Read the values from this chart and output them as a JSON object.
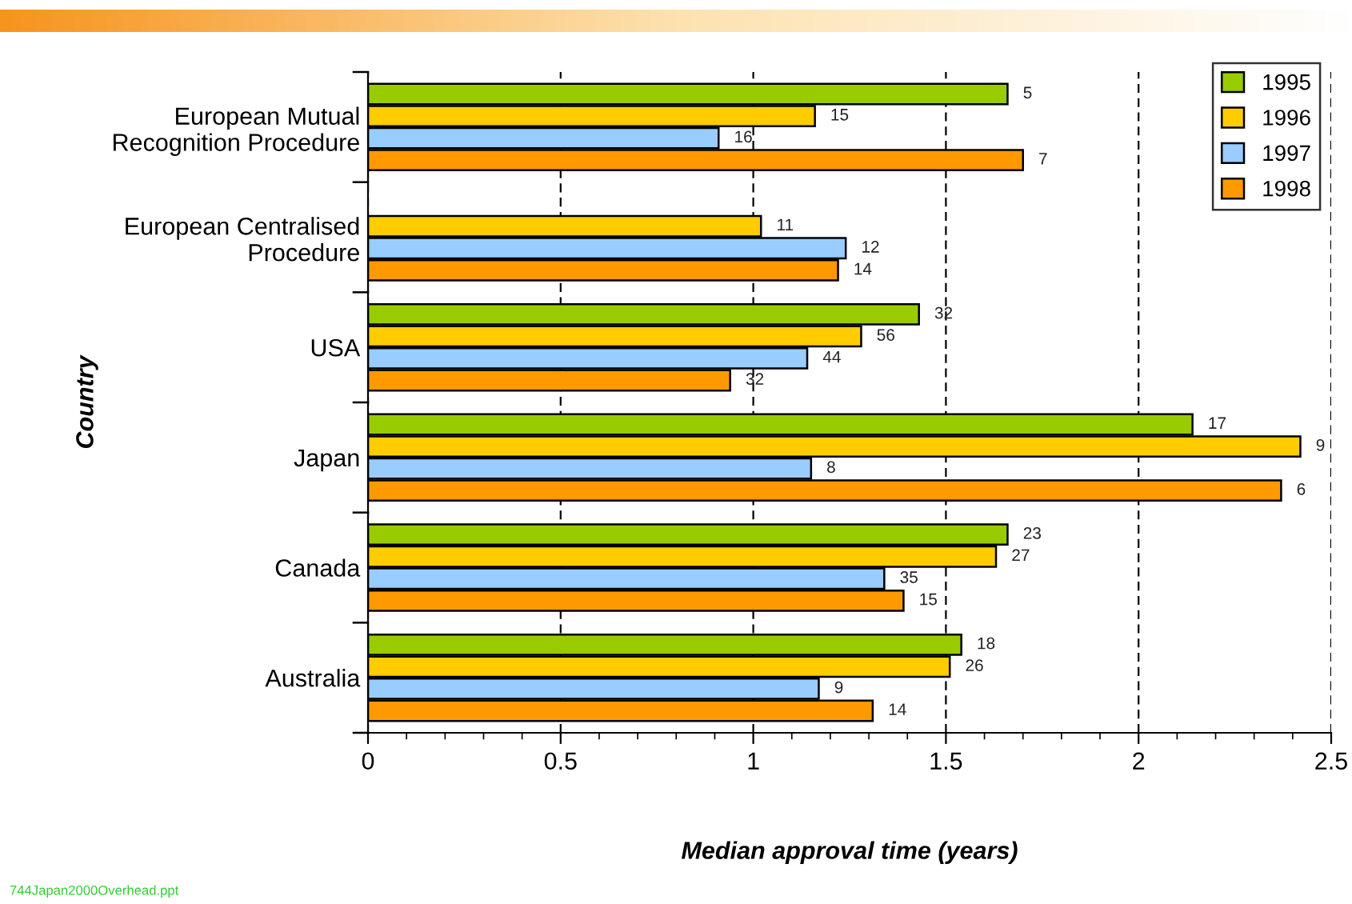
{
  "chart_data": {
    "type": "bar",
    "orientation": "horizontal",
    "categories": [
      "European Mutual\nRecognition Procedure",
      "European Centralised\nProcedure",
      "USA",
      "Japan",
      "Canada",
      "Australia"
    ],
    "series": [
      {
        "name": "1995",
        "color": "#99cc00",
        "values": [
          1.66,
          null,
          1.43,
          2.14,
          1.66,
          1.54
        ]
      },
      {
        "name": "1996",
        "color": "#ffcc00",
        "values": [
          1.16,
          1.02,
          1.28,
          2.42,
          1.63,
          1.51
        ]
      },
      {
        "name": "1997",
        "color": "#99ccff",
        "values": [
          0.91,
          1.24,
          1.14,
          1.15,
          1.34,
          1.17
        ]
      },
      {
        "name": "1998",
        "color": "#ff9900",
        "values": [
          1.7,
          1.22,
          0.94,
          2.37,
          1.39,
          1.31
        ]
      }
    ],
    "xlabel": "Median approval time (years)",
    "ylabel": "Country",
    "xlim": [
      0,
      2.5
    ],
    "xticks": [
      0,
      0.5,
      1,
      1.5,
      2,
      2.5
    ],
    "grid": "x",
    "legend": "top right",
    "annotations": [
      "5",
      "15",
      "16",
      "7",
      "11",
      "12",
      "14",
      "32",
      "56",
      "44",
      "32",
      "17",
      "9",
      "8",
      "6",
      "23",
      "27",
      "35",
      "15",
      "18",
      "26",
      "9",
      "14",
      "744Japan2000Overhead.ppt"
    ]
  }
}
